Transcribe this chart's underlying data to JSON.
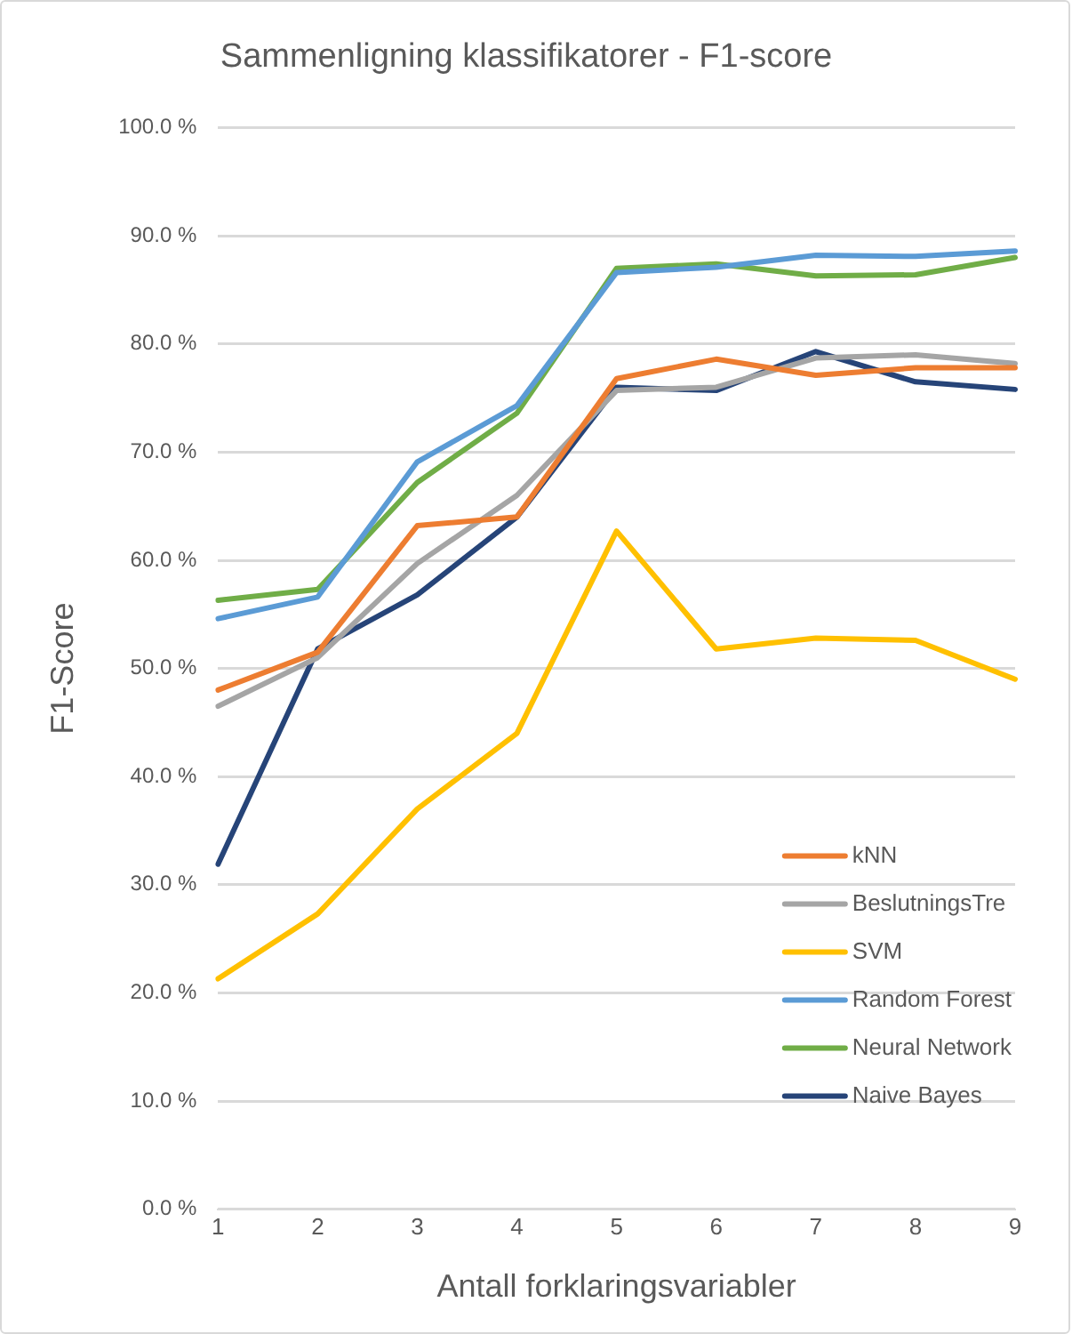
{
  "chart_data": {
    "type": "line",
    "title": "Sammenligning klassifikatorer - F1-score",
    "xlabel": "Antall forklaringsvariabler",
    "ylabel": "F1-Score",
    "categories": [
      "1",
      "2",
      "3",
      "4",
      "5",
      "6",
      "7",
      "8",
      "9"
    ],
    "ylim": [
      0,
      100
    ],
    "yticks": [
      {
        "value": 0,
        "label": "0.0 %"
      },
      {
        "value": 10,
        "label": "10.0 %"
      },
      {
        "value": 20,
        "label": "20.0 %"
      },
      {
        "value": 30,
        "label": "30.0 %"
      },
      {
        "value": 40,
        "label": "40.0 %"
      },
      {
        "value": 50,
        "label": "50.0 %"
      },
      {
        "value": 60,
        "label": "60.0 %"
      },
      {
        "value": 70,
        "label": "70.0 %"
      },
      {
        "value": 80,
        "label": "80.0 %"
      },
      {
        "value": 90,
        "label": "90.0 %"
      },
      {
        "value": 100,
        "label": "100.0 %"
      }
    ],
    "grid": "y",
    "legend": "bottom right",
    "marker": "none",
    "line_style": "solid",
    "series": [
      {
        "name": "kNN",
        "color": "#ed7d31",
        "values": [
          48,
          51.5,
          63.2,
          64,
          76.8,
          78.6,
          77.1,
          77.8,
          77.8
        ]
      },
      {
        "name": "BeslutningsTre",
        "color": "#a5a5a5",
        "values": [
          46.5,
          51,
          59.7,
          66,
          75.7,
          76,
          78.7,
          79,
          78.2
        ]
      },
      {
        "name": "SVM",
        "color": "#ffc000",
        "values": [
          21.3,
          27.3,
          37,
          44,
          62.7,
          51.8,
          52.8,
          52.6,
          49
        ]
      },
      {
        "name": "Random Forest",
        "color": "#5b9bd5",
        "values": [
          54.6,
          56.6,
          69.1,
          74.3,
          86.6,
          87.1,
          88.2,
          88.1,
          88.6
        ]
      },
      {
        "name": "Neural Network",
        "color": "#70ad47",
        "values": [
          56.3,
          57.3,
          67.2,
          73.6,
          87.0,
          87.4,
          86.3,
          86.4,
          88
        ]
      },
      {
        "name": "Naive Bayes",
        "color": "#264478",
        "values": [
          31.9,
          51.8,
          56.8,
          64,
          76,
          75.7,
          79.3,
          76.5,
          75.8
        ]
      }
    ]
  }
}
